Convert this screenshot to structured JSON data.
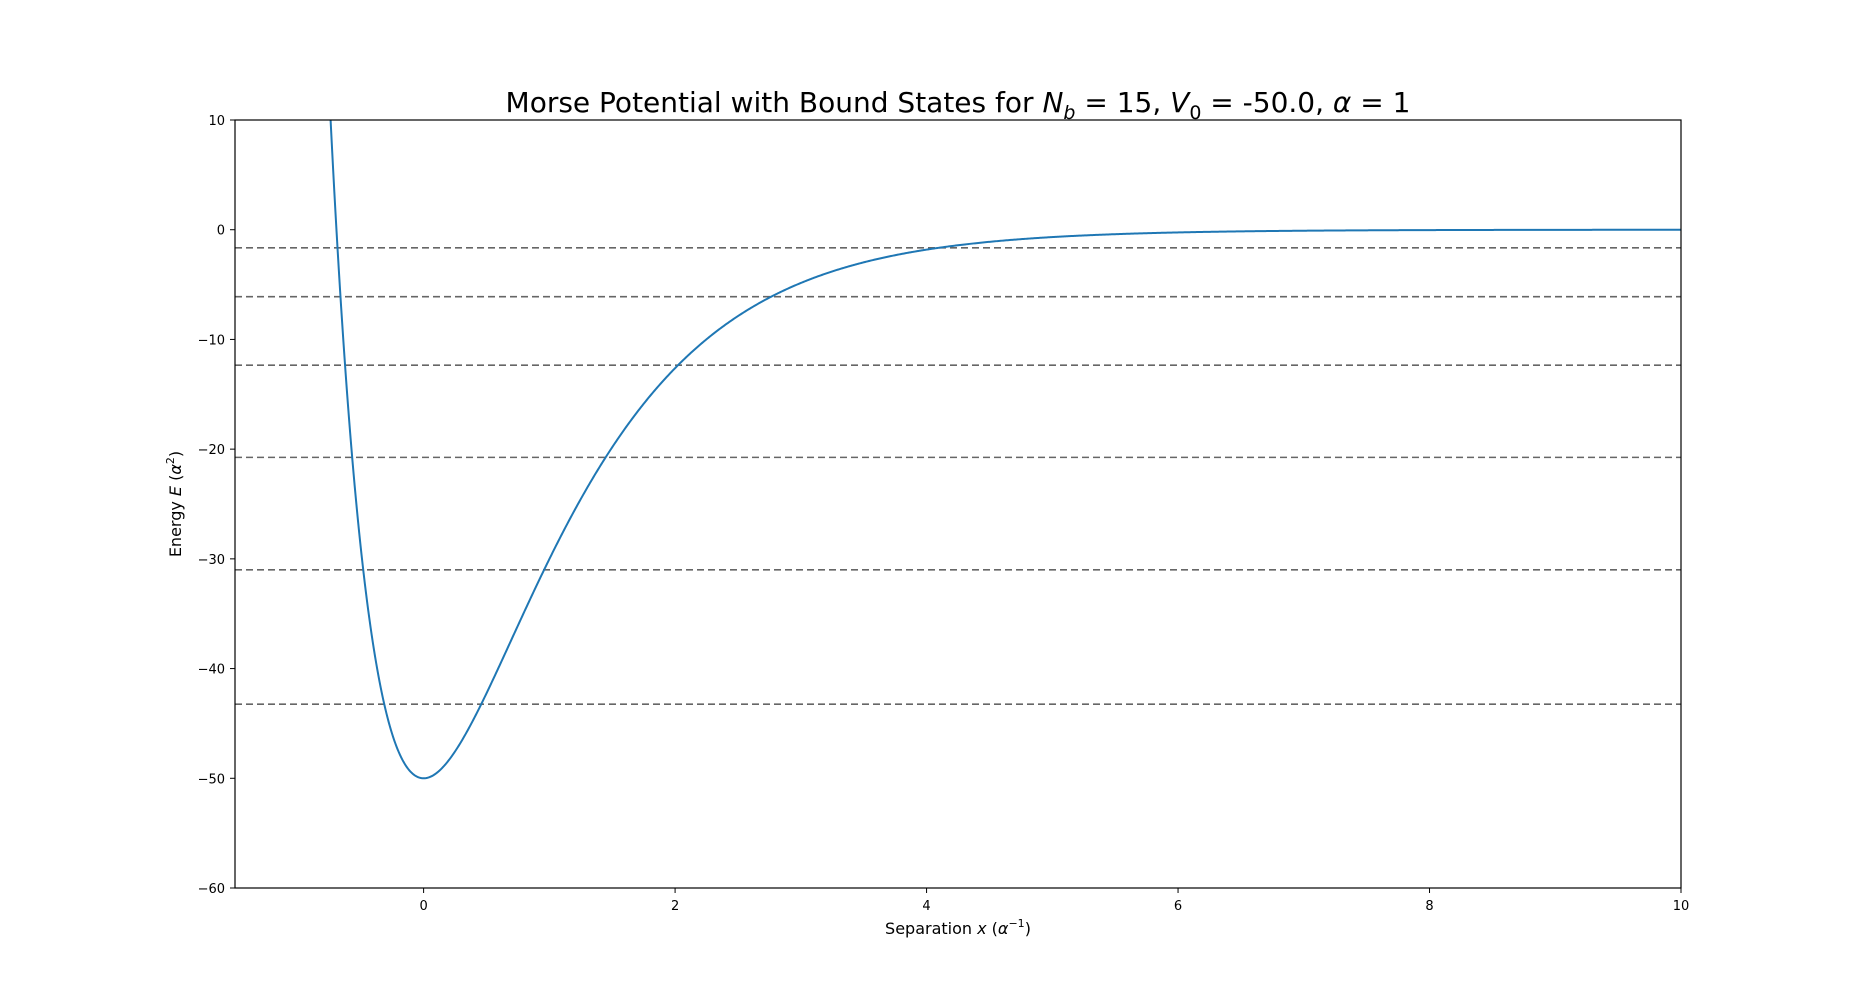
{
  "chart_data": {
    "type": "line",
    "title": {
      "prefix": "Morse Potential with Bound States for ",
      "nb_symbol": "N",
      "nb_sub": "b",
      "nb_value": " = 15, ",
      "v0_symbol": "V",
      "v0_sub": "0",
      "v0_value": " = -50.0, ",
      "alpha_symbol": "α",
      "alpha_value": " = 1"
    },
    "xlabel": {
      "text": "Separation ",
      "var": "x",
      "unit_open": " (",
      "unit_sym": "α",
      "unit_sup": "−1",
      "unit_close": ")"
    },
    "ylabel": {
      "text": "Energy ",
      "var": "E",
      "unit_open": " (",
      "unit_sym": "α",
      "unit_sup": "2",
      "unit_close": ")"
    },
    "xlim": [
      -1.5,
      10
    ],
    "ylim": [
      -60,
      10
    ],
    "xticks": [
      0,
      2,
      4,
      6,
      8,
      10
    ],
    "xtick_labels": [
      "0",
      "2",
      "4",
      "6",
      "8",
      "10"
    ],
    "yticks": [
      -60,
      -50,
      -40,
      -30,
      -20,
      -10,
      0,
      10
    ],
    "ytick_labels": [
      "−60",
      "−50",
      "−40",
      "−30",
      "−20",
      "−10",
      "0",
      "10"
    ],
    "grid": false,
    "potential": {
      "depth": 50.0,
      "alpha": 1,
      "x_min": -0.8,
      "x_max": 10,
      "color": "#1f77b4"
    },
    "bound_state_energies": [
      -43.25,
      -31.0,
      -20.75,
      -12.35,
      -6.1,
      -1.65
    ],
    "bound_state_color": "#666666"
  }
}
